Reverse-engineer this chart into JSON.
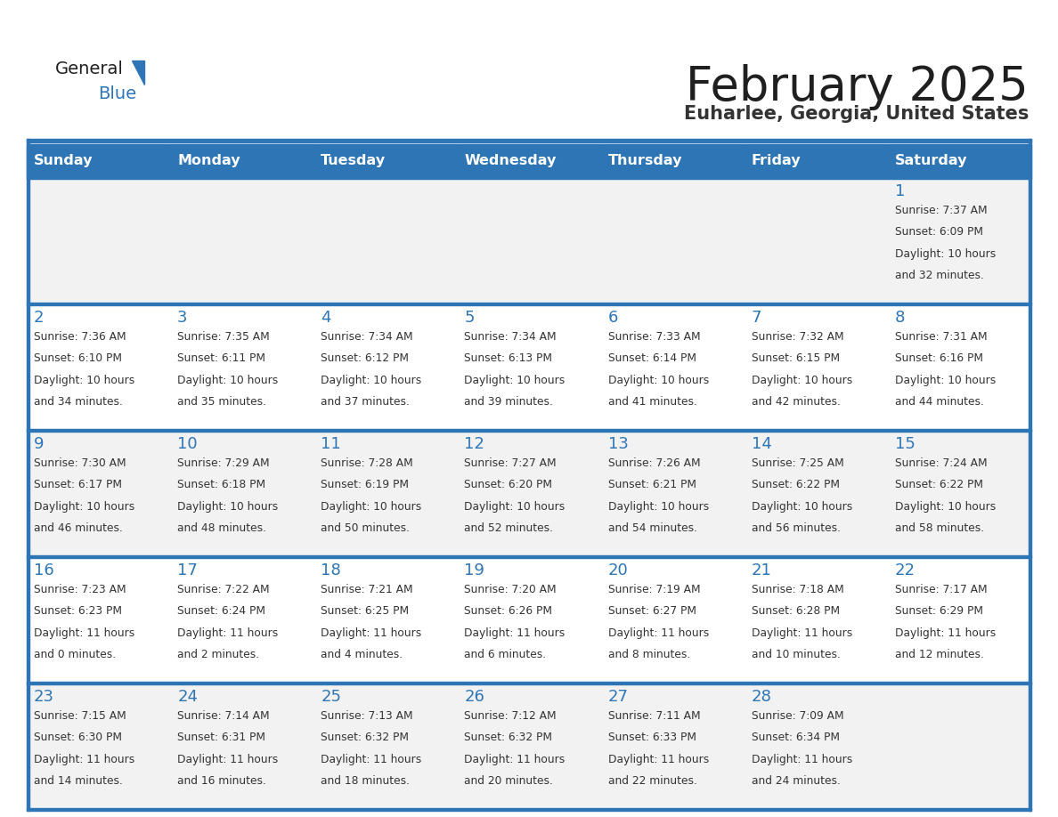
{
  "title": "February 2025",
  "subtitle": "Euharlee, Georgia, United States",
  "header_color": "#2E75B6",
  "header_text_color": "#FFFFFF",
  "row_bg_odd": "#F2F2F2",
  "row_bg_even": "#FFFFFF",
  "border_color": "#2E75B6",
  "days_of_week": [
    "Sunday",
    "Monday",
    "Tuesday",
    "Wednesday",
    "Thursday",
    "Friday",
    "Saturday"
  ],
  "title_color": "#1F1F1F",
  "subtitle_color": "#333333",
  "day_num_color": "#2E75B6",
  "cell_text_color": "#333333",
  "logo_general_color": "#1F1F1F",
  "logo_blue_color": "#2E75B6",
  "logo_triangle_color": "#2E75B6",
  "calendar_data": [
    [
      null,
      null,
      null,
      null,
      null,
      null,
      {
        "day": 1,
        "sunrise": "7:37 AM",
        "sunset": "6:09 PM",
        "daylight": "10 hours and 32 minutes."
      }
    ],
    [
      {
        "day": 2,
        "sunrise": "7:36 AM",
        "sunset": "6:10 PM",
        "daylight": "10 hours and 34 minutes."
      },
      {
        "day": 3,
        "sunrise": "7:35 AM",
        "sunset": "6:11 PM",
        "daylight": "10 hours and 35 minutes."
      },
      {
        "day": 4,
        "sunrise": "7:34 AM",
        "sunset": "6:12 PM",
        "daylight": "10 hours and 37 minutes."
      },
      {
        "day": 5,
        "sunrise": "7:34 AM",
        "sunset": "6:13 PM",
        "daylight": "10 hours and 39 minutes."
      },
      {
        "day": 6,
        "sunrise": "7:33 AM",
        "sunset": "6:14 PM",
        "daylight": "10 hours and 41 minutes."
      },
      {
        "day": 7,
        "sunrise": "7:32 AM",
        "sunset": "6:15 PM",
        "daylight": "10 hours and 42 minutes."
      },
      {
        "day": 8,
        "sunrise": "7:31 AM",
        "sunset": "6:16 PM",
        "daylight": "10 hours and 44 minutes."
      }
    ],
    [
      {
        "day": 9,
        "sunrise": "7:30 AM",
        "sunset": "6:17 PM",
        "daylight": "10 hours and 46 minutes."
      },
      {
        "day": 10,
        "sunrise": "7:29 AM",
        "sunset": "6:18 PM",
        "daylight": "10 hours and 48 minutes."
      },
      {
        "day": 11,
        "sunrise": "7:28 AM",
        "sunset": "6:19 PM",
        "daylight": "10 hours and 50 minutes."
      },
      {
        "day": 12,
        "sunrise": "7:27 AM",
        "sunset": "6:20 PM",
        "daylight": "10 hours and 52 minutes."
      },
      {
        "day": 13,
        "sunrise": "7:26 AM",
        "sunset": "6:21 PM",
        "daylight": "10 hours and 54 minutes."
      },
      {
        "day": 14,
        "sunrise": "7:25 AM",
        "sunset": "6:22 PM",
        "daylight": "10 hours and 56 minutes."
      },
      {
        "day": 15,
        "sunrise": "7:24 AM",
        "sunset": "6:22 PM",
        "daylight": "10 hours and 58 minutes."
      }
    ],
    [
      {
        "day": 16,
        "sunrise": "7:23 AM",
        "sunset": "6:23 PM",
        "daylight": "11 hours and 0 minutes."
      },
      {
        "day": 17,
        "sunrise": "7:22 AM",
        "sunset": "6:24 PM",
        "daylight": "11 hours and 2 minutes."
      },
      {
        "day": 18,
        "sunrise": "7:21 AM",
        "sunset": "6:25 PM",
        "daylight": "11 hours and 4 minutes."
      },
      {
        "day": 19,
        "sunrise": "7:20 AM",
        "sunset": "6:26 PM",
        "daylight": "11 hours and 6 minutes."
      },
      {
        "day": 20,
        "sunrise": "7:19 AM",
        "sunset": "6:27 PM",
        "daylight": "11 hours and 8 minutes."
      },
      {
        "day": 21,
        "sunrise": "7:18 AM",
        "sunset": "6:28 PM",
        "daylight": "11 hours and 10 minutes."
      },
      {
        "day": 22,
        "sunrise": "7:17 AM",
        "sunset": "6:29 PM",
        "daylight": "11 hours and 12 minutes."
      }
    ],
    [
      {
        "day": 23,
        "sunrise": "7:15 AM",
        "sunset": "6:30 PM",
        "daylight": "11 hours and 14 minutes."
      },
      {
        "day": 24,
        "sunrise": "7:14 AM",
        "sunset": "6:31 PM",
        "daylight": "11 hours and 16 minutes."
      },
      {
        "day": 25,
        "sunrise": "7:13 AM",
        "sunset": "6:32 PM",
        "daylight": "11 hours and 18 minutes."
      },
      {
        "day": 26,
        "sunrise": "7:12 AM",
        "sunset": "6:32 PM",
        "daylight": "11 hours and 20 minutes."
      },
      {
        "day": 27,
        "sunrise": "7:11 AM",
        "sunset": "6:33 PM",
        "daylight": "11 hours and 22 minutes."
      },
      {
        "day": 28,
        "sunrise": "7:09 AM",
        "sunset": "6:34 PM",
        "daylight": "11 hours and 24 minutes."
      },
      null
    ]
  ]
}
